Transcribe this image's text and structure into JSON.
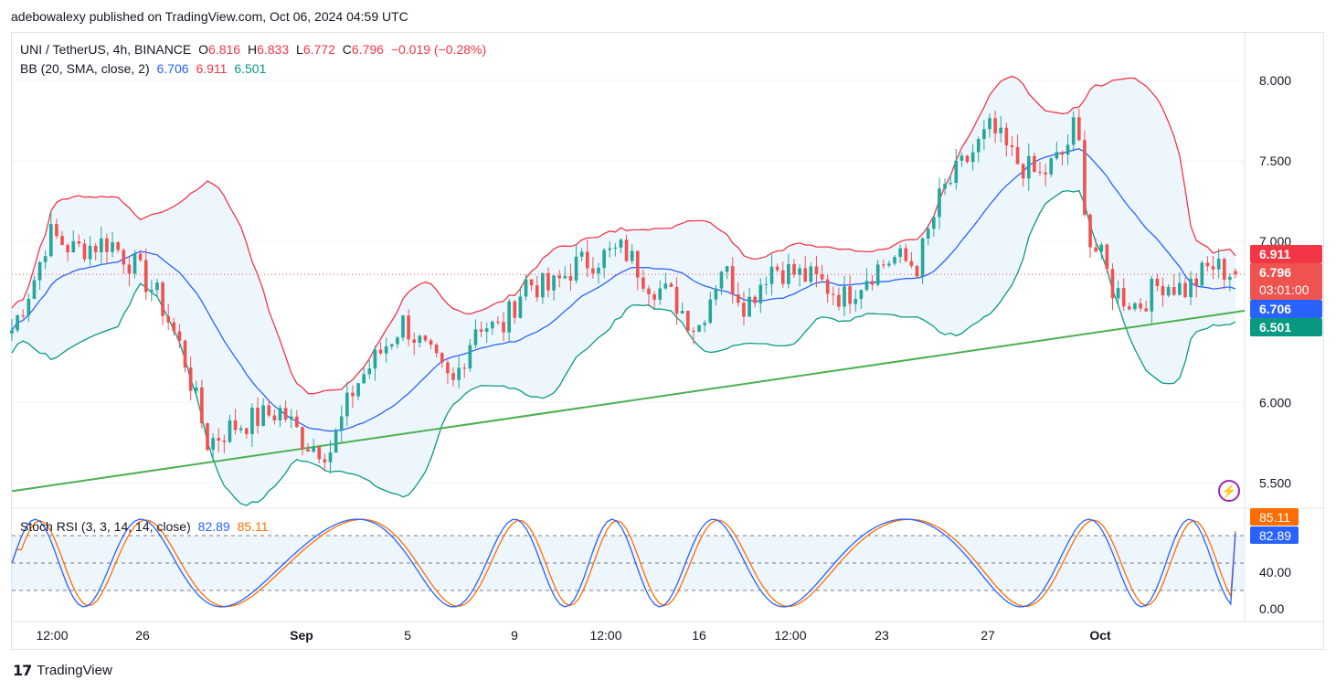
{
  "header": {
    "published_text": "adebowalexy published on TradingView.com, Oct 06, 2024 04:59 UTC"
  },
  "legend": {
    "symbol": "UNI / TetherUS, 4h, BINANCE",
    "o_label": "O",
    "o_value": "6.816",
    "h_label": "H",
    "h_value": "6.833",
    "l_label": "L",
    "l_value": "6.772",
    "c_label": "C",
    "c_value": "6.796",
    "change": "−0.019 (−0.28%)",
    "bb_label": "BB (20, SMA, close, 2)",
    "bb_basis": "6.706",
    "bb_upper": "6.911",
    "bb_lower": "6.501"
  },
  "rsi_legend": {
    "label": "Stoch RSI (3, 3, 14, 14, close)",
    "k": "82.89",
    "d": "85.11"
  },
  "price_axis": {
    "ticks": [
      "8.000",
      "7.500",
      "7.000",
      "6.000",
      "5.500"
    ]
  },
  "price_badges": {
    "upper": "6.911",
    "last": "6.796",
    "countdown": "03:01:00",
    "basis": "6.706",
    "lower": "6.501"
  },
  "rsi_axis": {
    "ticks": [
      "40.00",
      "0.00"
    ],
    "badge_d": "85.11",
    "badge_k": "82.89"
  },
  "time_axis": {
    "labels": [
      "12:00",
      "26",
      "Sep",
      "5",
      "9",
      "12:00",
      "16",
      "12:00",
      "23",
      "27",
      "Oct"
    ]
  },
  "footer": {
    "brand": "TradingView",
    "logo_glyph": "17"
  },
  "colors": {
    "up": "#26a69a",
    "down": "#ef5350",
    "bb_upper": "#f23645",
    "bb_basis": "#2962ff",
    "bb_lower": "#089981",
    "trendline": "#4caf50",
    "k_line": "#2962ff",
    "d_line": "#ff6d00",
    "band_fill": "#eef6fd"
  },
  "chart_data": {
    "type": "candlestick",
    "symbol": "UNI / TetherUS",
    "timeframe": "4h",
    "ylim": [
      5.35,
      8.3
    ],
    "ohlc_last": {
      "open": 6.816,
      "high": 6.833,
      "low": 6.772,
      "close": 6.796
    },
    "bollinger": {
      "basis": 6.706,
      "upper": 6.911,
      "lower": 6.501
    },
    "x_labels": [
      "12:00",
      "26",
      "Sep",
      "5",
      "9",
      "12:00",
      "16",
      "12:00",
      "23",
      "27",
      "Oct"
    ],
    "close_path": [
      {
        "x": 0,
        "y": 6.45
      },
      {
        "x": 0.02,
        "y": 6.8
      },
      {
        "x": 0.03,
        "y": 7.05
      },
      {
        "x": 0.05,
        "y": 6.95
      },
      {
        "x": 0.08,
        "y": 7.0
      },
      {
        "x": 0.1,
        "y": 6.85
      },
      {
        "x": 0.12,
        "y": 6.65
      },
      {
        "x": 0.14,
        "y": 6.3
      },
      {
        "x": 0.16,
        "y": 5.75
      },
      {
        "x": 0.18,
        "y": 5.85
      },
      {
        "x": 0.2,
        "y": 5.9
      },
      {
        "x": 0.22,
        "y": 5.95
      },
      {
        "x": 0.24,
        "y": 5.75
      },
      {
        "x": 0.26,
        "y": 5.7
      },
      {
        "x": 0.28,
        "y": 6.1
      },
      {
        "x": 0.3,
        "y": 6.3
      },
      {
        "x": 0.32,
        "y": 6.5
      },
      {
        "x": 0.34,
        "y": 6.3
      },
      {
        "x": 0.36,
        "y": 6.1
      },
      {
        "x": 0.38,
        "y": 6.5
      },
      {
        "x": 0.4,
        "y": 6.45
      },
      {
        "x": 0.42,
        "y": 6.75
      },
      {
        "x": 0.44,
        "y": 6.7
      },
      {
        "x": 0.46,
        "y": 6.85
      },
      {
        "x": 0.48,
        "y": 6.9
      },
      {
        "x": 0.5,
        "y": 6.95
      },
      {
        "x": 0.52,
        "y": 6.75
      },
      {
        "x": 0.54,
        "y": 6.65
      },
      {
        "x": 0.56,
        "y": 6.45
      },
      {
        "x": 0.58,
        "y": 6.85
      },
      {
        "x": 0.6,
        "y": 6.6
      },
      {
        "x": 0.62,
        "y": 6.85
      },
      {
        "x": 0.64,
        "y": 6.8
      },
      {
        "x": 0.66,
        "y": 6.75
      },
      {
        "x": 0.68,
        "y": 6.65
      },
      {
        "x": 0.7,
        "y": 6.8
      },
      {
        "x": 0.72,
        "y": 6.9
      },
      {
        "x": 0.74,
        "y": 6.85
      },
      {
        "x": 0.76,
        "y": 7.3
      },
      {
        "x": 0.78,
        "y": 7.5
      },
      {
        "x": 0.8,
        "y": 7.7
      },
      {
        "x": 0.82,
        "y": 7.5
      },
      {
        "x": 0.84,
        "y": 7.4
      },
      {
        "x": 0.86,
        "y": 7.55
      },
      {
        "x": 0.87,
        "y": 7.75
      },
      {
        "x": 0.88,
        "y": 7.0
      },
      {
        "x": 0.89,
        "y": 6.9
      },
      {
        "x": 0.9,
        "y": 6.7
      },
      {
        "x": 0.92,
        "y": 6.6
      },
      {
        "x": 0.94,
        "y": 6.75
      },
      {
        "x": 0.96,
        "y": 6.7
      },
      {
        "x": 0.98,
        "y": 6.85
      },
      {
        "x": 1.0,
        "y": 6.796
      }
    ],
    "trendline": [
      {
        "x": 0,
        "y": 5.45
      },
      {
        "x": 1.0,
        "y": 6.57
      }
    ],
    "stoch_rsi": {
      "k": 82.89,
      "d": 85.11,
      "levels": [
        0,
        40
      ]
    }
  }
}
